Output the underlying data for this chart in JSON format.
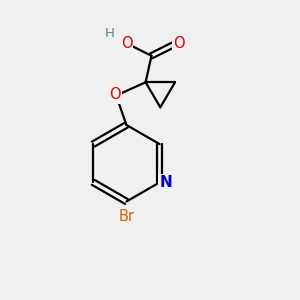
{
  "bg_color": "#f0f0f0",
  "bond_color": "#000000",
  "bond_lw": 1.6,
  "atom_colors": {
    "O": "#dd0000",
    "N": "#0000cc",
    "Br": "#cc6600",
    "H": "#4a8a8a",
    "C": "#000000"
  },
  "font_size_atom": 10.5,
  "font_size_H": 9.5
}
